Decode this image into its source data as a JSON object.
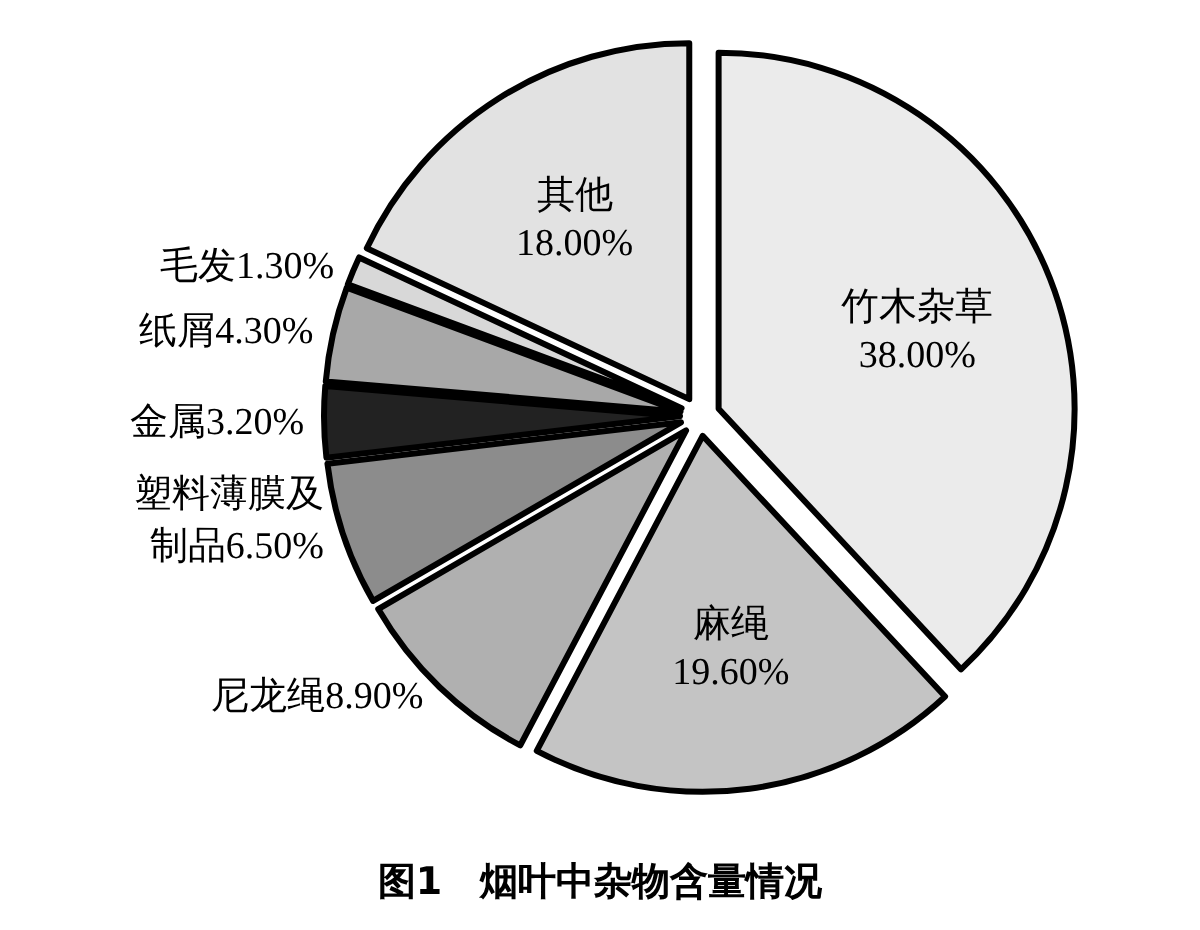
{
  "chart_data": {
    "type": "pie",
    "title": "图1　烟叶中杂物含量情况",
    "categories": [
      "竹木杂草",
      "麻绳",
      "尼龙绳",
      "塑料薄膜及制品",
      "金属",
      "纸屑",
      "毛发",
      "其他"
    ],
    "values": [
      38.0,
      19.6,
      8.9,
      6.5,
      3.2,
      4.3,
      1.3,
      18.0
    ],
    "value_labels": [
      "38.00%",
      "19.60%",
      "8.90%",
      "6.50%",
      "3.20%",
      "4.30%",
      "1.30%",
      "18.00%"
    ],
    "colors": [
      "#ebebeb",
      "#c4c4c4",
      "#b0b0b0",
      "#8c8c8c",
      "#222222",
      "#a8a8a8",
      "#d8d8d8",
      "#e2e2e2"
    ]
  }
}
